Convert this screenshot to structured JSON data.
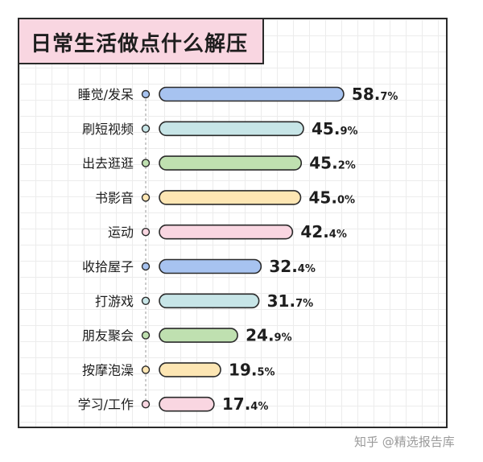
{
  "title": "日常生活做点什么解压",
  "watermark": "知乎 @精选报告库",
  "colors": {
    "blue": "#a7c3f0",
    "teal": "#c7e5e7",
    "green": "#bfe0b0",
    "yellow": "#fde6b3",
    "pink": "#f9d6e1",
    "outline": "#2a2a2a",
    "title_bg": "#f9d6e1"
  },
  "chart_data": {
    "type": "bar",
    "orientation": "horizontal",
    "title": "日常生活做点什么解压",
    "unit": "%",
    "xlim": [
      0,
      100
    ],
    "grid": true,
    "categories": [
      "睡觉/发呆",
      "刷短视频",
      "出去逛逛",
      "书影音",
      "运动",
      "收拾屋子",
      "打游戏",
      "朋友聚会",
      "按摩泡澡",
      "学习/工作"
    ],
    "values": [
      58.7,
      45.9,
      45.2,
      45.0,
      42.4,
      32.4,
      31.7,
      24.9,
      19.5,
      17.4
    ],
    "value_labels": [
      {
        "num": "58.",
        "dec": "7%"
      },
      {
        "num": "45.",
        "dec": "9%"
      },
      {
        "num": "45.",
        "dec": "2%"
      },
      {
        "num": "45.",
        "dec": "0%"
      },
      {
        "num": "42.",
        "dec": "4%"
      },
      {
        "num": "32.",
        "dec": "4%"
      },
      {
        "num": "31.",
        "dec": "7%"
      },
      {
        "num": "24.",
        "dec": "9%"
      },
      {
        "num": "19.",
        "dec": "5%"
      },
      {
        "num": "17.",
        "dec": "4%"
      }
    ],
    "bar_colors": [
      "#a7c3f0",
      "#c7e5e7",
      "#bfe0b0",
      "#fde6b3",
      "#f9d6e1",
      "#a7c3f0",
      "#c7e5e7",
      "#bfe0b0",
      "#fde6b3",
      "#f9d6e1"
    ]
  }
}
